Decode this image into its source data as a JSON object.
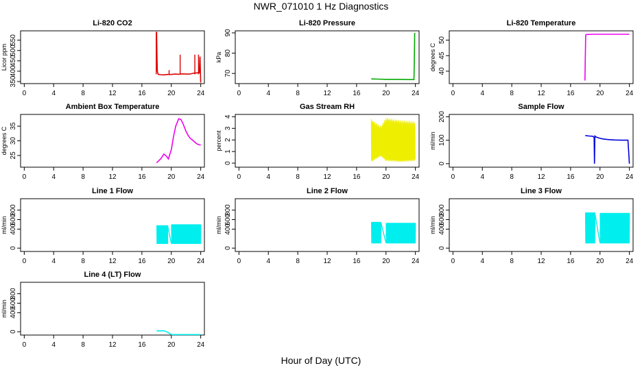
{
  "title": "NWR_071010  1 Hz Diagnostics",
  "xlabel": "Hour of Day (UTC)",
  "chart_data": [
    {
      "id": "licor-co2",
      "type": "line",
      "title": "Li-820 CO2",
      "ylabel": "Licor ppm",
      "xlim": [
        -0.5,
        24.5
      ],
      "ylim": [
        340,
        595
      ],
      "yticks": [
        350,
        400,
        450,
        500,
        550
      ],
      "xticks": [
        0,
        4,
        8,
        12,
        16,
        20,
        24
      ],
      "color": "#dd0000",
      "series": [
        {
          "name": "CO2",
          "x": [
            18.0,
            18.05,
            18.1,
            18.2,
            18.5,
            19.0,
            19.5,
            20.0,
            20.5,
            21.0,
            21.5,
            22.0,
            22.5,
            23.0,
            23.5,
            23.8,
            23.9,
            24.0
          ],
          "y": [
            590,
            470,
            400,
            385,
            383,
            382,
            384,
            384,
            386,
            385,
            387,
            386,
            386,
            390,
            392,
            392,
            470,
            345
          ]
        }
      ],
      "spikes": [
        {
          "x": 17.95,
          "y": 590
        },
        {
          "x": 21.2,
          "y": 480
        },
        {
          "x": 23.2,
          "y": 480
        },
        {
          "x": 23.7,
          "y": 480
        },
        {
          "x": 19.7,
          "y": 405
        }
      ]
    },
    {
      "id": "licor-pressure",
      "type": "line",
      "title": "Li-820 Pressure",
      "ylabel": "kPa",
      "xlim": [
        -0.5,
        24.5
      ],
      "ylim": [
        65,
        91
      ],
      "yticks": [
        70,
        80,
        90
      ],
      "xticks": [
        0,
        4,
        8,
        12,
        16,
        20,
        24
      ],
      "color": "#00aa00",
      "series": [
        {
          "name": "Pressure",
          "x": [
            18.0,
            19.0,
            20.0,
            21.0,
            22.0,
            23.0,
            23.8,
            23.85,
            23.9
          ],
          "y": [
            67.3,
            67.2,
            67.1,
            67.1,
            67.1,
            67.0,
            67.0,
            75,
            90
          ]
        }
      ]
    },
    {
      "id": "licor-temperature",
      "type": "line",
      "title": "Li-820 Temperature",
      "ylabel": "degrees C",
      "xlim": [
        -0.5,
        24.5
      ],
      "ylim": [
        36,
        53
      ],
      "yticks": [
        40,
        45,
        50
      ],
      "xticks": [
        0,
        4,
        8,
        12,
        16,
        20,
        24
      ],
      "color": "#ee00ee",
      "series": [
        {
          "name": "Temperature",
          "x": [
            17.95,
            18.0,
            18.05,
            18.1,
            19.0,
            20.0,
            21.0,
            22.0,
            23.0,
            24.0
          ],
          "y": [
            37,
            44,
            51.5,
            51.8,
            51.9,
            51.9,
            51.9,
            51.9,
            51.9,
            51.9
          ]
        }
      ]
    },
    {
      "id": "ambient-box-temperature",
      "type": "line",
      "title": "Ambient Box Temperature",
      "ylabel": "degrees C",
      "xlim": [
        -0.5,
        24.5
      ],
      "ylim": [
        21,
        39
      ],
      "yticks": [
        25,
        30,
        35
      ],
      "xticks": [
        0,
        4,
        8,
        12,
        16,
        20,
        24
      ],
      "color": "#ee00ee",
      "series": [
        {
          "name": "Box Temp",
          "x": [
            18.0,
            18.3,
            18.6,
            19.0,
            19.3,
            19.6,
            20.0,
            20.3,
            20.6,
            21.0,
            21.3,
            21.6,
            22.0,
            22.3,
            22.6,
            23.0,
            23.3,
            23.6,
            24.0
          ],
          "y": [
            22.5,
            23.2,
            24.0,
            25.5,
            24.8,
            23.8,
            27.0,
            31.5,
            35.0,
            37.5,
            37.3,
            35.8,
            33.2,
            31.8,
            30.8,
            30.0,
            29.3,
            28.8,
            28.5
          ]
        }
      ]
    },
    {
      "id": "gas-stream-rh",
      "type": "line",
      "title": "Gas Stream RH",
      "ylabel": "percent",
      "xlim": [
        -0.5,
        24.5
      ],
      "ylim": [
        -0.35,
        4.2
      ],
      "yticks": [
        0,
        1,
        2,
        3,
        4
      ],
      "xticks": [
        0,
        4,
        8,
        12,
        16,
        20,
        24
      ],
      "color": "#eeee00",
      "series": [
        {
          "name": "RH",
          "band": [
            [
              18.0,
              0.1,
              3.8
            ],
            [
              19.3,
              0.6,
              3.2
            ],
            [
              20.0,
              0.2,
              3.9
            ],
            [
              22.0,
              0.1,
              3.7
            ],
            [
              24.0,
              0.2,
              3.6
            ]
          ]
        }
      ]
    },
    {
      "id": "sample-flow",
      "type": "line",
      "title": "Sample Flow",
      "ylabel": "ml/min",
      "xlim": [
        -0.5,
        24.5
      ],
      "ylim": [
        -15,
        210
      ],
      "yticks": [
        0,
        100,
        200
      ],
      "xticks": [
        0,
        4,
        8,
        12,
        16,
        20,
        24
      ],
      "color": "#0000dd",
      "series": [
        {
          "name": "Flow",
          "x": [
            18.0,
            18.5,
            19.0,
            19.2,
            19.25,
            19.3,
            19.5,
            20.0,
            20.5,
            21.0,
            22.0,
            23.0,
            23.8,
            23.9,
            24.0
          ],
          "y": [
            120,
            118,
            117,
            112,
            0,
            118,
            113,
            108,
            105,
            103,
            101,
            100,
            100,
            50,
            0
          ]
        }
      ]
    },
    {
      "id": "line-1-flow",
      "type": "line",
      "title": "Line 1 Flow",
      "ylabel": "ml/min",
      "xlim": [
        -0.5,
        24.5
      ],
      "ylim": [
        -70,
        1040
      ],
      "yticks": [
        0,
        400,
        600,
        800
      ],
      "xticks": [
        0,
        4,
        8,
        12,
        16,
        20,
        24
      ],
      "color": "#00eeee",
      "series": [
        {
          "name": "Line 1",
          "segments": [
            [
              18.0,
              19.5,
              100,
              470
            ],
            [
              20.0,
              24.0,
              100,
              490
            ]
          ]
        }
      ]
    },
    {
      "id": "line-2-flow",
      "type": "line",
      "title": "Line 2 Flow",
      "ylabel": "ml/min",
      "xlim": [
        -0.5,
        24.5
      ],
      "ylim": [
        -70,
        1040
      ],
      "yticks": [
        0,
        400,
        600,
        800
      ],
      "xticks": [
        0,
        4,
        8,
        12,
        16,
        20,
        24
      ],
      "color": "#00eeee",
      "series": [
        {
          "name": "Line 2",
          "segments": [
            [
              18.0,
              19.3,
              110,
              540
            ],
            [
              20.0,
              24.0,
              110,
              520
            ]
          ]
        }
      ]
    },
    {
      "id": "line-3-flow",
      "type": "line",
      "title": "Line 3 Flow",
      "ylabel": "ml/min",
      "xlim": [
        -0.5,
        24.5
      ],
      "ylim": [
        -70,
        1040
      ],
      "yticks": [
        0,
        400,
        600,
        800
      ],
      "xticks": [
        0,
        4,
        8,
        12,
        16,
        20,
        24
      ],
      "color": "#00eeee",
      "series": [
        {
          "name": "Line 3",
          "segments": [
            [
              18.0,
              19.3,
              110,
              740
            ],
            [
              20.0,
              24.0,
              110,
              730
            ]
          ]
        }
      ]
    },
    {
      "id": "line-4-flow",
      "type": "line",
      "title": "Line 4 (LT) Flow",
      "ylabel": "ml/min",
      "xlim": [
        -0.5,
        24.5
      ],
      "ylim": [
        -70,
        1040
      ],
      "yticks": [
        0,
        400,
        600,
        800
      ],
      "xticks": [
        0,
        4,
        8,
        12,
        16,
        20,
        24
      ],
      "color": "#00eeee",
      "series": [
        {
          "name": "Line 4",
          "x": [
            18.0,
            19.0,
            19.5,
            20.0,
            21.0,
            22.0,
            23.0,
            24.0
          ],
          "y": [
            20,
            20,
            -10,
            -60,
            -60,
            -60,
            -60,
            -60
          ]
        }
      ]
    }
  ]
}
